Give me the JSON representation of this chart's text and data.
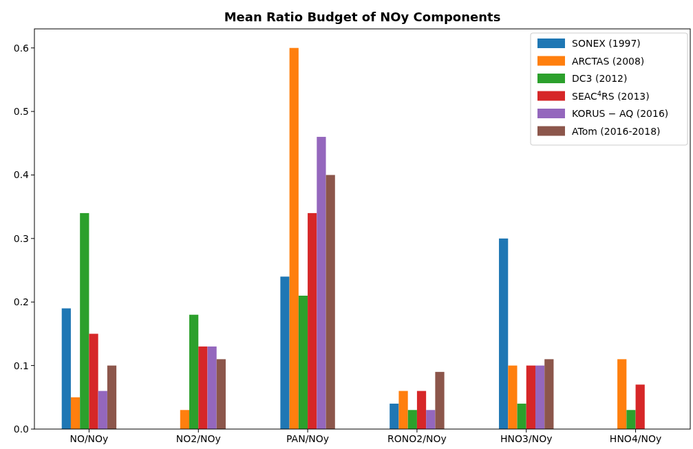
{
  "chart_data": {
    "type": "bar",
    "title": "Mean Ratio Budget of NOy Components",
    "categories": [
      "NO/NOy",
      "NO2/NOy",
      "PAN/NOy",
      "RONO2/NOy",
      "HNO3/NOy",
      "HNO4/NOy"
    ],
    "series": [
      {
        "name": "SONEX (1997)",
        "color": "#1f77b4",
        "values": [
          0.19,
          null,
          0.24,
          0.04,
          0.3,
          null
        ]
      },
      {
        "name": "ARCTAS (2008)",
        "color": "#ff7f0e",
        "values": [
          0.05,
          0.03,
          0.6,
          0.06,
          0.1,
          0.11
        ]
      },
      {
        "name": "DC3 (2012)",
        "color": "#2ca02c",
        "values": [
          0.34,
          0.18,
          0.21,
          0.03,
          0.04,
          0.03
        ]
      },
      {
        "name": "SEAC$^{4}$RS (2013)",
        "color": "#d62728",
        "values": [
          0.15,
          0.13,
          0.34,
          0.06,
          0.1,
          0.07
        ]
      },
      {
        "name": "KORUS − AQ (2016)",
        "color": "#9467bd",
        "values": [
          0.06,
          0.13,
          0.46,
          0.03,
          0.1,
          null
        ]
      },
      {
        "name": "ATom (2016-2018)",
        "color": "#8c564b",
        "values": [
          0.1,
          0.11,
          0.4,
          0.09,
          0.11,
          null
        ]
      }
    ],
    "ylim": [
      0,
      0.63
    ],
    "yticks": [
      {
        "value": 0,
        "label": "0.0"
      },
      {
        "value": 0.1,
        "label": "0.1"
      },
      {
        "value": 0.2,
        "label": "0.2"
      },
      {
        "value": 0.3,
        "label": "0.3"
      },
      {
        "value": 0.4,
        "label": "0.4"
      },
      {
        "value": 0.5,
        "label": "0.5"
      },
      {
        "value": 0.6,
        "label": "0.6"
      }
    ],
    "grid": false,
    "legend": "top right"
  }
}
